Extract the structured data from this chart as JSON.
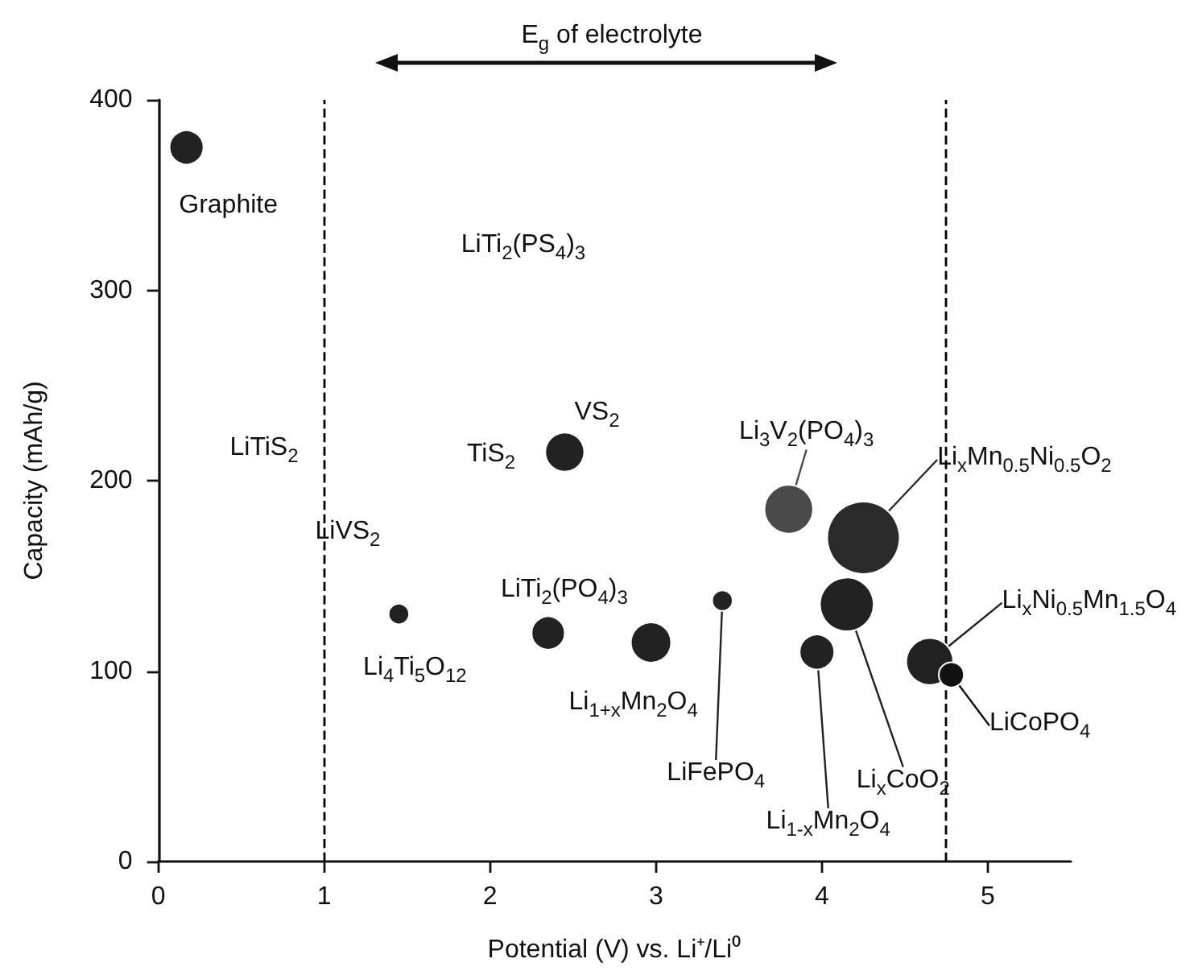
{
  "chart_data": {
    "type": "bubble",
    "xlabel": "Potential (V) vs. Li⁺/Li⁰",
    "ylabel": "Capacity (mAh/g)",
    "xlim": [
      0,
      5.5
    ],
    "xticks": [
      0,
      1,
      2,
      3,
      4,
      5
    ],
    "ylim": [
      0,
      400
    ],
    "yticks": [
      0,
      100,
      200,
      300,
      400
    ],
    "grid": false,
    "legend": false,
    "marker": "circle",
    "series": [
      {
        "name": "Graphite",
        "color": "#222222",
        "x": [
          0.17
        ],
        "values": [
          375
        ],
        "sizes": [
          0.22
        ]
      },
      {
        "name": "VS$_{2}$",
        "color": "#222222",
        "x": [
          2.45
        ],
        "values": [
          215
        ],
        "sizes": [
          0.29
        ]
      },
      {
        "name": "Li$_{4}$Ti$_{5}$O$_{12}$",
        "color": "#222222",
        "x": [
          1.45
        ],
        "values": [
          130
        ],
        "sizes": [
          0.08
        ]
      },
      {
        "name": "LiTi$_{2}$(PO$_{4}$)$_{3}$",
        "color": "#222222",
        "x": [
          2.35
        ],
        "values": [
          120
        ],
        "sizes": [
          0.21
        ]
      },
      {
        "name": "Li$_{1+x}$Mn$_{2}$O$_{4}$",
        "color": "#222222",
        "x": [
          2.97
        ],
        "values": [
          115
        ],
        "sizes": [
          0.31
        ]
      },
      {
        "name": "LiFePO$_{4}$",
        "color": "#222222",
        "x": [
          3.4
        ],
        "values": [
          137
        ],
        "sizes": [
          0.08
        ]
      },
      {
        "name": "Li$_{3}$V$_{2}$(PO$_{4}$)$_{3}$",
        "color": "#4a4a4a",
        "x": [
          3.8
        ],
        "values": [
          185
        ],
        "sizes": [
          0.45
        ]
      },
      {
        "name": "Li$_{x}$Mn$_{0.5}$Ni$_{0.5}$O$_{2}$",
        "color": "#2a2a2a",
        "x": [
          4.25
        ],
        "values": [
          170
        ],
        "sizes": [
          1
        ]
      },
      {
        "name": "Li$_{x}$CoO$_{2}$",
        "color": "#222222",
        "x": [
          4.15
        ],
        "values": [
          135
        ],
        "sizes": [
          0.55
        ]
      },
      {
        "name": "Li$_{1-x}$Mn$_{2}$O$_{4}$",
        "color": "#222222",
        "x": [
          3.97
        ],
        "values": [
          110
        ],
        "sizes": [
          0.23
        ]
      },
      {
        "name": "Li$_{x}$Ni$_{0.5}$Mn$_{1.5}$O$_{4}$",
        "color": "#222222",
        "x": [
          4.65
        ],
        "values": [
          105
        ],
        "sizes": [
          0.42
        ]
      },
      {
        "name": "LiCoPO$_{4}$",
        "color": "#111111",
        "x": [
          4.78
        ],
        "values": [
          98
        ],
        "sizes": [
          0.12
        ]
      }
    ],
    "ref_lines": [
      {
        "axis": "x",
        "value": 1,
        "color": "#000000",
        "line_style": "dashed"
      },
      {
        "axis": "x",
        "value": 4.75,
        "color": "#000000",
        "line_style": "dashed"
      }
    ],
    "annotations": [
      "E$_{g}$ of electrolyte",
      "LiTiS$_{2}$",
      "LiVS$_{2}$",
      "TiS$_{2}$",
      "LiTi$_{2}$(PS$_{4}$)$_{3}$"
    ]
  }
}
